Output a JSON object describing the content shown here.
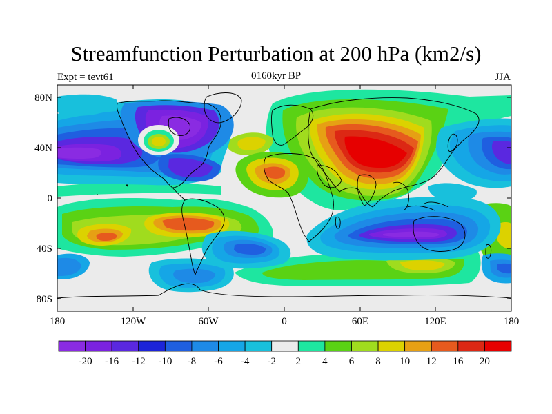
{
  "title": "Streamfunction Perturbation at 200 hPa (km2/s)",
  "subtitle_left": "Expt = tevt61",
  "subtitle_center": "0160kyr BP",
  "subtitle_right": "JJA",
  "y_ticks": [
    "80N",
    "40N",
    "0",
    "40S",
    "80S"
  ],
  "x_ticks": [
    "180",
    "120W",
    "60W",
    "0",
    "60E",
    "120E",
    "180"
  ],
  "colorbar": {
    "labels": [
      "-20",
      "-16",
      "-12",
      "-10",
      "-8",
      "-6",
      "-4",
      "-2",
      "2",
      "4",
      "6",
      "8",
      "10",
      "12",
      "16",
      "20"
    ],
    "colors": [
      "#8a2be2",
      "#7b22e0",
      "#5a28e0",
      "#1c24d8",
      "#1f5fe0",
      "#1e8ae6",
      "#15a6e6",
      "#18c0dc",
      "#ebebeb",
      "#1ee6a0",
      "#5ad214",
      "#a0dc1e",
      "#dcd200",
      "#e6a014",
      "#e65a1e",
      "#dc2814",
      "#e60000"
    ]
  },
  "palette": {
    "background": "#ebebeb",
    "coast": "#000000"
  }
}
